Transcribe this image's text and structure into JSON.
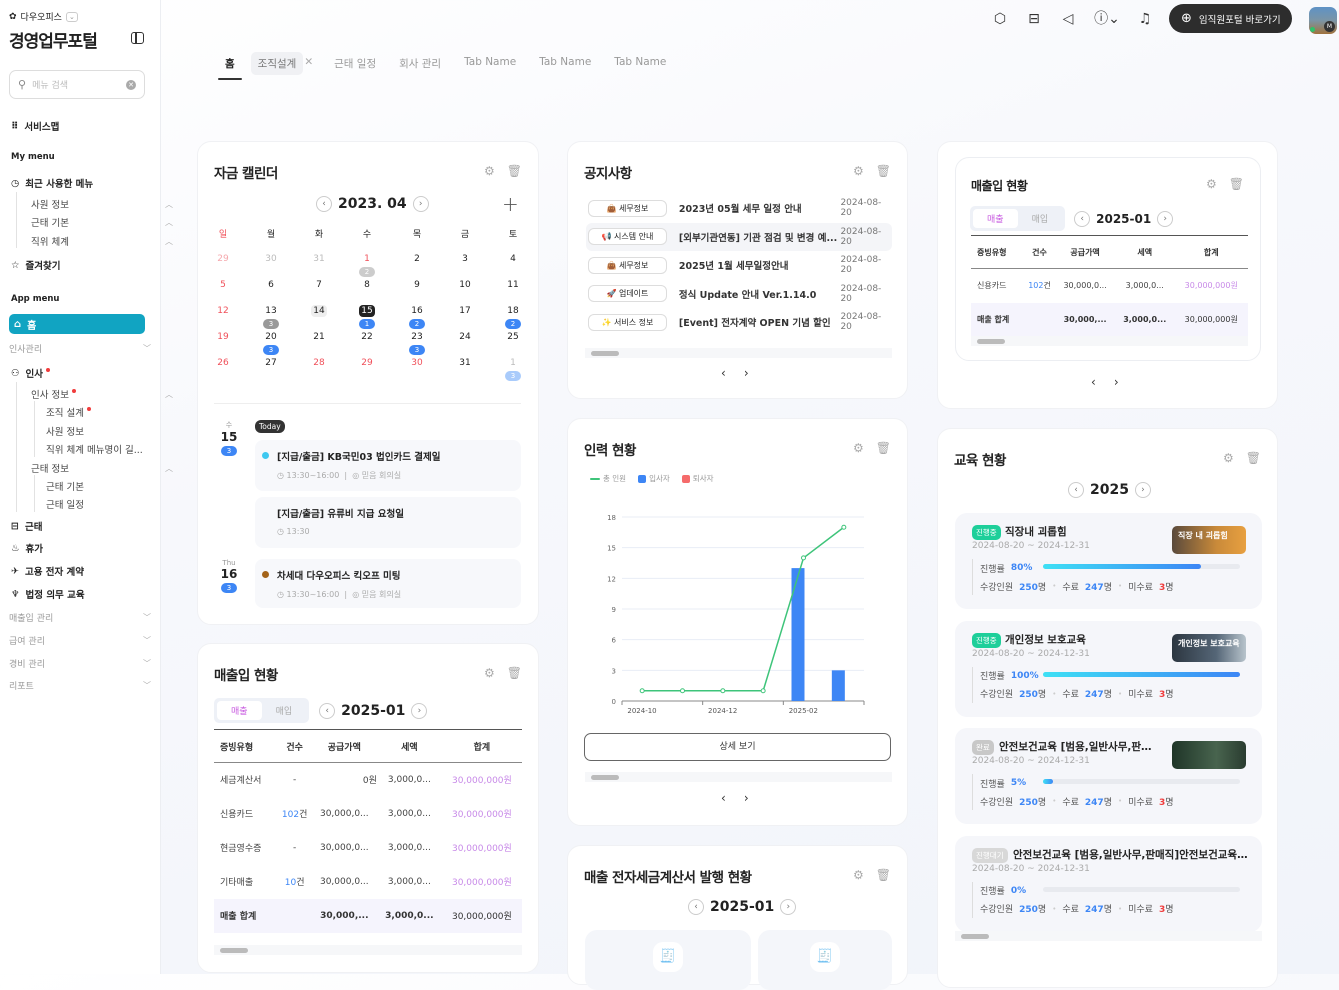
{
  "sidebar": {
    "brand": "다우오피스",
    "title": "경영업무포털",
    "search_placeholder": "메뉴 검색",
    "service_map": "서비스맵",
    "my_menu": "My menu",
    "recent": "최근 사용한 메뉴",
    "recent_items": [
      "사원 정보",
      "근태 기본",
      "직위 체계"
    ],
    "favorites": "즐겨찾기",
    "app_menu": "App menu",
    "home": "홈",
    "hr_mgmt": "인사관리",
    "hr": "인사",
    "hr_info": "인사 정보",
    "org_design": "조직 설계",
    "emp_info": "사원 정보",
    "position": "직위 체계 메뉴명이 길...",
    "att_info": "근태 정보",
    "att_basic": "근태 기본",
    "att_sched": "근태 일정",
    "attendance": "근태",
    "vacation": "휴가",
    "contract": "고용 전자 계약",
    "edu": "법정 의무 교육",
    "sales_mgmt": "매출입 관리",
    "payroll": "급여 관리",
    "expense": "경비 관리",
    "report": "리포트"
  },
  "topbar": {
    "portal_button": "임직원포털 바로가기",
    "avatar_initial": "M"
  },
  "tabs": [
    "홈",
    "조직설계",
    "근태 일정",
    "회사 관리",
    "Tab Name",
    "Tab Name",
    "Tab Name"
  ],
  "calendar": {
    "title": "자금 캘린더",
    "month": "2023. 04",
    "weekdays": [
      "일",
      "월",
      "화",
      "수",
      "목",
      "금",
      "토"
    ],
    "weeks": [
      [
        {
          "d": "29",
          "c": "ph"
        },
        {
          "d": "30",
          "c": "o"
        },
        {
          "d": "31",
          "c": "o"
        },
        {
          "d": "1",
          "c": "h",
          "b": "2",
          "bc": "lg"
        },
        {
          "d": "2"
        },
        {
          "d": "3"
        },
        {
          "d": "4"
        }
      ],
      [
        {
          "d": "5",
          "c": "h"
        },
        {
          "d": "6"
        },
        {
          "d": "7"
        },
        {
          "d": "8"
        },
        {
          "d": "9"
        },
        {
          "d": "10"
        },
        {
          "d": "11"
        }
      ],
      [
        {
          "d": "12",
          "c": "h"
        },
        {
          "d": "13",
          "b": "3",
          "bc": "grey"
        },
        {
          "d": "14",
          "c": "hov"
        },
        {
          "d": "15",
          "c": "sel",
          "b": "1"
        },
        {
          "d": "16",
          "b": "2"
        },
        {
          "d": "17"
        },
        {
          "d": "18",
          "b": "2"
        }
      ],
      [
        {
          "d": "19",
          "c": "h"
        },
        {
          "d": "20",
          "b": "3"
        },
        {
          "d": "21"
        },
        {
          "d": "22"
        },
        {
          "d": "23",
          "b": "3"
        },
        {
          "d": "24"
        },
        {
          "d": "25"
        }
      ],
      [
        {
          "d": "26",
          "c": "h"
        },
        {
          "d": "27"
        },
        {
          "d": "28",
          "c": "h"
        },
        {
          "d": "29",
          "c": "h"
        },
        {
          "d": "30",
          "c": "h"
        },
        {
          "d": "31"
        },
        {
          "d": "1",
          "c": "o",
          "b": "3",
          "bc": "lt"
        }
      ]
    ],
    "today_label": "Today",
    "days": [
      {
        "weekday": "수",
        "day": "15",
        "count": "3"
      },
      {
        "weekday": "Thu",
        "day": "16",
        "count": "3"
      }
    ],
    "events": [
      {
        "title": "[지급/출금] KB국민03 법인카드 결제일",
        "time": "13:30~16:00",
        "place": "믿음 회의실",
        "color": "#3ec8f0"
      },
      {
        "title": "[지급/출금] 유류비 지급 요청일",
        "time": "13:30",
        "place": ""
      },
      {
        "title": "차세대 다우오피스 킥오프 미팅",
        "time": "13:30~16:00",
        "place": "믿음 회의실",
        "color": "#a4641a"
      }
    ]
  },
  "sales": {
    "title": "매출입 현황",
    "seg": [
      "매출",
      "매입"
    ],
    "month": "2025-01",
    "headers": [
      "증빙유형",
      "건수",
      "공급가액",
      "세액",
      "합계"
    ],
    "rows": [
      [
        "세금계산서",
        "-",
        "",
        "0원",
        "3,000,0...",
        "30,000,000원"
      ],
      [
        "신용카드",
        "102",
        "건",
        "30,000,0...",
        "3,000,0...",
        "30,000,000원"
      ],
      [
        "현금영수증",
        "-",
        "",
        "30,000,0...",
        "3,000,0...",
        "30,000,000원"
      ],
      [
        "기타매출",
        "10",
        "건",
        "30,000,0...",
        "3,000,0...",
        "30,000,000원"
      ]
    ],
    "total": [
      "매출 합계",
      "30,000,...",
      "3,000,0...",
      "30,000,000원"
    ]
  },
  "sales_small": {
    "title": "매출입 현황",
    "seg": [
      "매출",
      "매입"
    ],
    "month": "2025-01",
    "headers": [
      "증빙유형",
      "건수",
      "공급가액",
      "세액",
      "합계"
    ],
    "rows": [
      [
        "신용카드",
        "102",
        "건",
        "30,000,0...",
        "3,000,0...",
        "30,000,000원"
      ]
    ],
    "total": [
      "매출 합계",
      "30,000,...",
      "3,000,0...",
      "30,000,000원"
    ]
  },
  "notices": {
    "title": "공지사항",
    "items": [
      {
        "tag": "👜 세무정보",
        "title": "2023년 05월 세무 일정 안내",
        "date": "2024-08-20"
      },
      {
        "tag": "📢 시스템 안내",
        "title": "[외부기관연동] 기관 점검 및 변경 예...",
        "date": "2024-08-20"
      },
      {
        "tag": "👜 세무정보",
        "title": "2025년 1월 세무일정안내",
        "date": "2024-08-20"
      },
      {
        "tag": "🚀 업데이트",
        "title": "정식 Update 안내 Ver.1.14.0",
        "date": "2024-08-20"
      },
      {
        "tag": "✨ 서비스 정보",
        "title": "[Event] 전자계약 OPEN 기념 할인",
        "date": "2024-08-20"
      }
    ]
  },
  "manpower": {
    "title": "인력 현황",
    "detail_button": "상세 보기"
  },
  "chart_data": {
    "type": "bar",
    "title": "인력 현황",
    "categories": [
      "2024-10",
      "2024-11",
      "2024-12",
      "2025-01",
      "2025-02",
      "2025-03"
    ],
    "tick_labels": [
      "2024-10",
      "2024-12",
      "2025-02"
    ],
    "ylim": [
      0,
      18
    ],
    "yticks": [
      0,
      3,
      6,
      9,
      12,
      15,
      18
    ],
    "legend": "top-left",
    "series": [
      {
        "name": "총 인원",
        "type": "line",
        "color": "#3ec47a",
        "values": [
          1,
          1,
          1,
          1,
          14,
          17
        ]
      },
      {
        "name": "입사자",
        "type": "bar",
        "color": "#3d86f5",
        "values": [
          0,
          0,
          0,
          0,
          13,
          3
        ]
      },
      {
        "name": "퇴사자",
        "type": "bar",
        "color": "#f56b6b",
        "values": [
          0,
          0,
          0,
          0,
          0,
          0
        ]
      }
    ]
  },
  "invoice": {
    "title": "매출 전자세금계산서 발행 현황",
    "month": "2025-01"
  },
  "education": {
    "title": "교육 현황",
    "year": "2025",
    "labels": {
      "progress": "진행률",
      "enrolled": "수강인원",
      "done": "수료",
      "undone": "미수료"
    },
    "items": [
      {
        "status": "진행중",
        "status_color": "#1ecf9a",
        "title": "직장내 괴롭힘",
        "period": "2024-08-20 ~ 2024-12-31",
        "progress": 80,
        "progress_text": "80%",
        "enrolled": "250",
        "done": "247",
        "undone": "3",
        "img_caption": "직장 내 괴롭힘"
      },
      {
        "status": "진행중",
        "status_color": "#1ecf9a",
        "title": "개인정보 보호교육",
        "period": "2024-08-20 ~ 2024-12-31",
        "progress": 100,
        "progress_text": "100%",
        "enrolled": "250",
        "done": "247",
        "undone": "3",
        "img_caption": "개인정보 보호교육"
      },
      {
        "status": "완료",
        "status_color": "#c8c8c8",
        "title": "안전보건교육 [범용,일반사무,판매직]",
        "period": "2024-08-20 ~ 2024-12-31",
        "progress": 5,
        "progress_text": "5%",
        "enrolled": "250",
        "done": "247",
        "undone": "3"
      },
      {
        "status": "진행대기",
        "status_color": "#d8d8d8",
        "title": "안전보건교육 [범용,일반사무,판매직]안전보건교육 [...",
        "period": "2024-08-20 ~ 2024-12-31",
        "progress": 0,
        "progress_text": "0%",
        "enrolled": "250",
        "done": "247",
        "undone": "3"
      }
    ]
  },
  "units": {
    "count": "건",
    "people": "명"
  }
}
